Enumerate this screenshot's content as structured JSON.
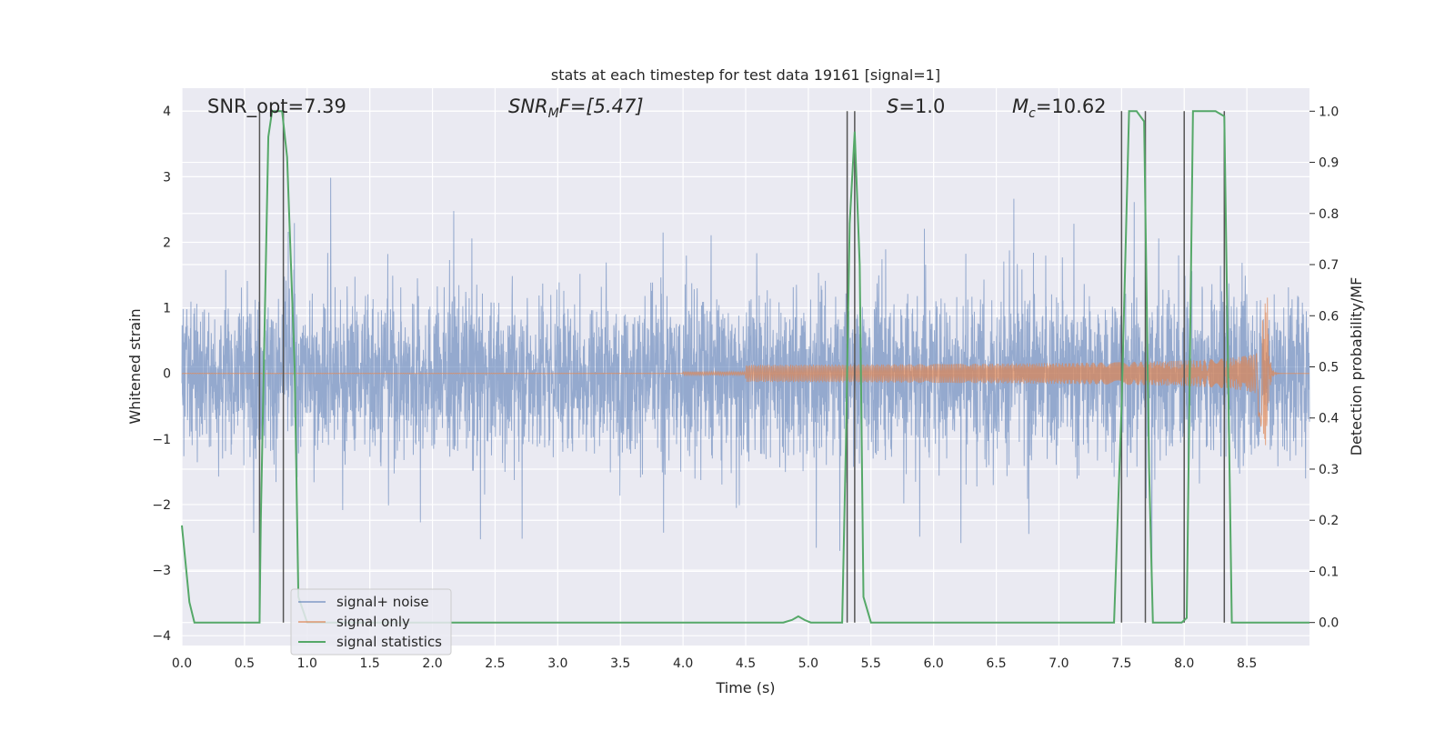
{
  "chart_data": {
    "type": "line",
    "title": "stats at each timestep for test data 19161 [signal=1]",
    "xlabel": "Time (s)",
    "ylabel": "Whitened strain",
    "y2label": "Detection probability/MF",
    "xlim": [
      0,
      9
    ],
    "ylim": [
      -4.15,
      4.35
    ],
    "y2lim": [
      -0.045,
      1.045
    ],
    "xticks": [
      "0.0",
      "0.5",
      "1.0",
      "1.5",
      "2.0",
      "2.5",
      "3.0",
      "3.5",
      "4.0",
      "4.5",
      "5.0",
      "5.5",
      "6.0",
      "6.5",
      "7.0",
      "7.5",
      "8.0",
      "8.5"
    ],
    "yticks": [
      "−4",
      "−3",
      "−2",
      "−1",
      "0",
      "1",
      "2",
      "3",
      "4"
    ],
    "y2ticks": [
      "0.0",
      "0.1",
      "0.2",
      "0.3",
      "0.4",
      "0.5",
      "0.6",
      "0.7",
      "0.8",
      "0.9",
      "1.0"
    ],
    "grid": true,
    "legend_position": "lower-left",
    "annotations": {
      "snr_opt": "SNR_opt=7.39",
      "snr_mf_sym": "SNR",
      "snr_mf_sub": "M",
      "snr_mf_rest": "F=[5.47]",
      "s_sym": "S",
      "s_rest": "=1.0",
      "mc_sym": "M",
      "mc_sub": "c",
      "mc_rest": "=10.62"
    },
    "series": [
      {
        "name": "signal+ noise",
        "color": "#4c72b0",
        "description_of_shape": "dense noisy whitened strain, roughly within ±2 with spikes to ±4"
      },
      {
        "name": "signal only",
        "color": "#dd8452",
        "chirp_start": 4.5,
        "chirp_peak_time": 8.67,
        "peak_amplitude": 1.4,
        "min_amplitude": -0.9
      },
      {
        "name": "signal statistics",
        "color": "#55a868",
        "x": [
          0.0,
          0.06,
          0.1,
          0.15,
          0.62,
          0.63,
          0.69,
          0.72,
          0.77,
          0.8,
          0.84,
          0.9,
          0.93,
          1.0,
          4.8,
          4.87,
          4.92,
          4.97,
          5.02,
          5.27,
          5.3,
          5.33,
          5.37,
          5.41,
          5.44,
          5.5,
          7.44,
          7.5,
          7.56,
          7.62,
          7.68,
          7.72,
          7.75,
          7.98,
          8.02,
          8.07,
          8.25,
          8.32,
          8.38,
          9.0
        ],
        "y": [
          0.19,
          0.04,
          0.0,
          0.0,
          0.0,
          0.2,
          0.95,
          1.0,
          1.0,
          1.0,
          0.91,
          0.5,
          0.05,
          0.0,
          0.0,
          0.005,
          0.012,
          0.005,
          0.0,
          0.0,
          0.35,
          0.78,
          0.96,
          0.7,
          0.05,
          0.0,
          0.0,
          0.42,
          1.0,
          1.0,
          0.98,
          0.3,
          0.0,
          0.0,
          0.009,
          1.0,
          1.0,
          0.99,
          0.0,
          0.0
        ]
      }
    ],
    "vertical_lines": {
      "color": "#555555",
      "x": [
        0.62,
        0.81,
        5.31,
        5.37,
        7.5,
        7.69,
        8.0,
        8.32
      ]
    }
  }
}
